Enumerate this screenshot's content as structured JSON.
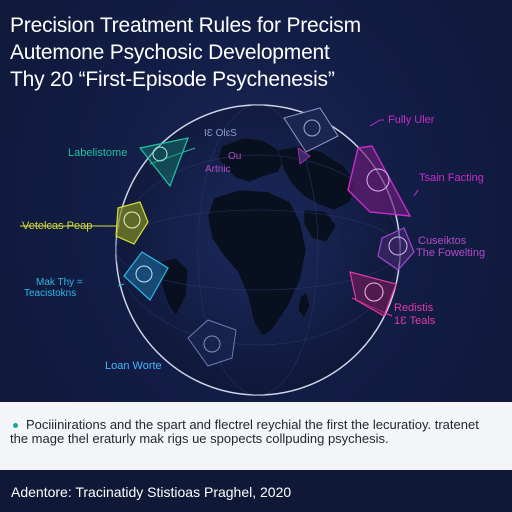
{
  "title": {
    "line1": "Precision Treatment Rules for Precism",
    "line2": "Autemone Psychosic Development",
    "line3": "Thy 20 “First-Episode Psychenesis”"
  },
  "labels": {
    "labelistome": "Labelistome",
    "veteicas_peap": "Vetelcas Peap",
    "mak_thy": "Mak Thy =",
    "teacistokns": "Teacistokns",
    "loan_worte": "Loan Worte",
    "center_line1": "IƐ OlɛS",
    "center_line2": "Ou",
    "center_line3": "Artnic",
    "fully_uler": "Fully Uler",
    "tsain_facting": "Tsain Facting",
    "cuseiktos": "Cuseiktos",
    "the_fowelting": "The Fowelting",
    "redistis": "Redistis",
    "fs_teals": "1Ɛ Teals"
  },
  "caption": {
    "text": "Pociiinirations and the spart and flectrel reychial the first the lecuratioy. tratenet the mage thel eraturly mak rigs ue spopects collpuding psychesis."
  },
  "footer": {
    "text": "Adentore:  Tracinatidy Stistioas Praghel, 2020"
  },
  "colors": {
    "background": "#121d45",
    "teal": "#1fc2a0",
    "yellow": "#d7dc3a",
    "cyan": "#2fb6e6",
    "blue_label": "#4ab4ff",
    "magenta": "#c62ec8",
    "pink": "#e23aa3"
  }
}
